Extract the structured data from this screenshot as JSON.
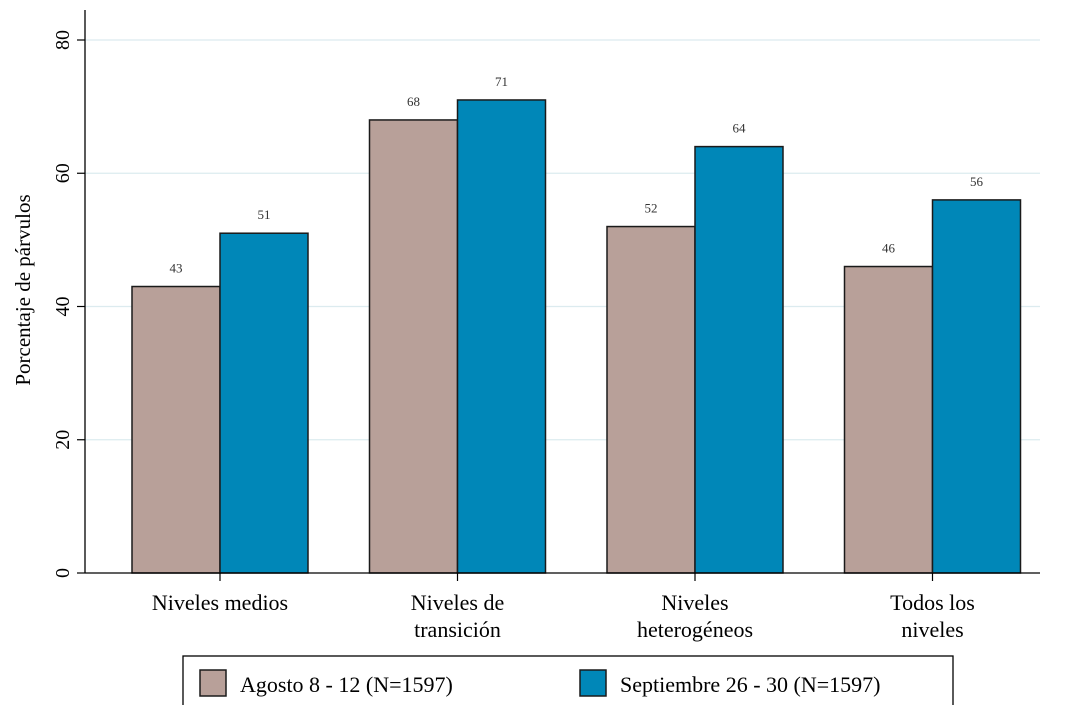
{
  "chart_data": {
    "type": "bar",
    "ylabel": "Porcentaje de párvulos",
    "ylim": [
      0,
      80
    ],
    "yticks": [
      0,
      20,
      40,
      60,
      80
    ],
    "grid": true,
    "categories": [
      [
        "Niveles medios"
      ],
      [
        "Niveles de",
        "transición"
      ],
      [
        "Niveles",
        "heterogéneos"
      ],
      [
        "Todos los",
        "niveles"
      ]
    ],
    "series": [
      {
        "name": "Agosto 8 - 12 (N=1597)",
        "color": "#b8a099",
        "values": [
          43,
          68,
          52,
          46
        ]
      },
      {
        "name": "Septiembre 26 - 30 (N=1597)",
        "color": "#0087b8",
        "values": [
          51,
          71,
          64,
          56
        ]
      }
    ],
    "legend_position": "bottom"
  }
}
